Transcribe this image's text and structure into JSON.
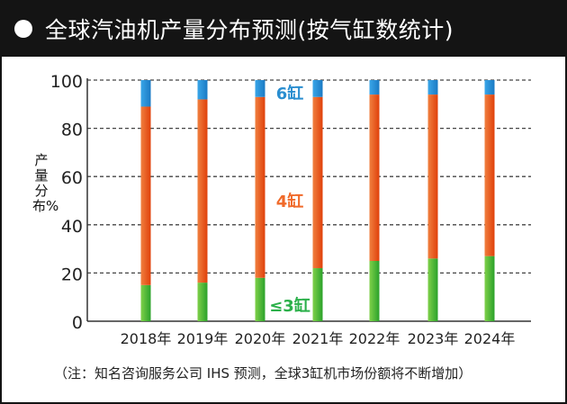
{
  "header": {
    "title": "全球汽油机产量分布预测(按气缸数统计)"
  },
  "note": "（注：知名咨询服务公司 IHS 预测，全球3缸机市场份额将不断增加）",
  "colors": {
    "header_bg": "#141414",
    "six_cyl": "#1e90d6",
    "four_cyl": "#f05a14",
    "three_cyl": "#3cb83c",
    "six_label": "#2a8ed0",
    "four_label": "#f06a2a",
    "three_label": "#2bb04a"
  },
  "chart_data": {
    "type": "bar",
    "stacked": true,
    "ylabel": "产量分布%",
    "ylim": [
      0,
      100
    ],
    "yticks": [
      0,
      20,
      40,
      60,
      80,
      100
    ],
    "grid": "horizontal dashed",
    "categories": [
      "2018年",
      "2019年",
      "2020年",
      "2021年",
      "2022年",
      "2023年",
      "2024年"
    ],
    "series": [
      {
        "name": "≤3缸",
        "values": [
          15,
          16,
          18,
          22,
          25,
          26,
          27
        ]
      },
      {
        "name": "4缸",
        "values": [
          74,
          76,
          75,
          71,
          69,
          68,
          67
        ]
      },
      {
        "name": "6缸",
        "values": [
          11,
          8,
          7,
          7,
          6,
          6,
          6
        ]
      }
    ]
  }
}
